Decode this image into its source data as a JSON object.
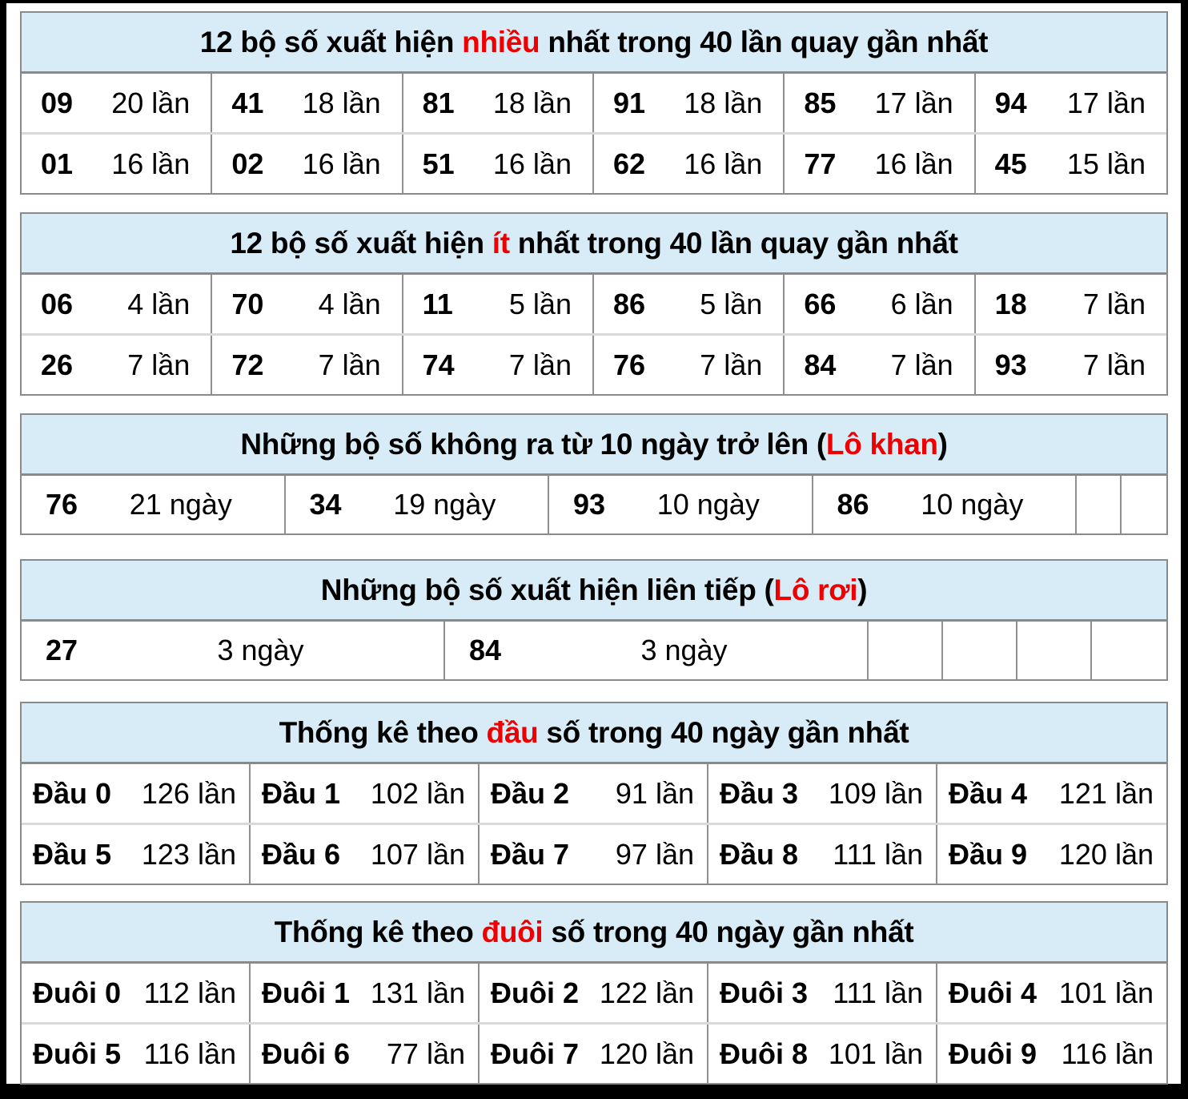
{
  "colors": {
    "frame": "#000000",
    "page_bg": "#ffffff",
    "header_bg": "#d8ecf7",
    "table_border": "#8a8a8a",
    "cell_divider": "#8f8f8f",
    "row_divider": "#d9d9d9",
    "highlight_red": "#ee0000",
    "text": "#000000"
  },
  "tables": [
    {
      "key": "most-frequent",
      "title": {
        "pre": "12 bộ số xuất hiện ",
        "hl": "nhiều",
        "post": " nhất trong 40 lần quay gần nhất"
      },
      "rows": [
        [
          {
            "n": "09",
            "v": "20 lần"
          },
          {
            "n": "41",
            "v": "18 lần"
          },
          {
            "n": "81",
            "v": "18 lần"
          },
          {
            "n": "91",
            "v": "18 lần"
          },
          {
            "n": "85",
            "v": "17 lần"
          },
          {
            "n": "94",
            "v": "17 lần"
          }
        ],
        [
          {
            "n": "01",
            "v": "16 lần"
          },
          {
            "n": "02",
            "v": "16 lần"
          },
          {
            "n": "51",
            "v": "16 lần"
          },
          {
            "n": "62",
            "v": "16 lần"
          },
          {
            "n": "77",
            "v": "16 lần"
          },
          {
            "n": "45",
            "v": "15 lần"
          }
        ]
      ]
    },
    {
      "key": "least-frequent",
      "title": {
        "pre": "12 bộ số xuất hiện ",
        "hl": "ít",
        "post": " nhất trong 40 lần quay gần nhất"
      },
      "rows": [
        [
          {
            "n": "06",
            "v": "4 lần"
          },
          {
            "n": "70",
            "v": "4 lần"
          },
          {
            "n": "11",
            "v": "5 lần"
          },
          {
            "n": "86",
            "v": "5 lần"
          },
          {
            "n": "66",
            "v": "6 lần"
          },
          {
            "n": "18",
            "v": "7 lần"
          }
        ],
        [
          {
            "n": "26",
            "v": "7 lần"
          },
          {
            "n": "72",
            "v": "7 lần"
          },
          {
            "n": "74",
            "v": "7 lần"
          },
          {
            "n": "76",
            "v": "7 lần"
          },
          {
            "n": "84",
            "v": "7 lần"
          },
          {
            "n": "93",
            "v": "7 lần"
          }
        ]
      ]
    },
    {
      "key": "lo-khan",
      "title": {
        "pre": "Những bộ số không ra từ 10 ngày trở lên (",
        "hl": "Lô khan",
        "post": ")"
      },
      "rows": [
        [
          {
            "n": "76",
            "v": "21 ngày"
          },
          {
            "n": "34",
            "v": "19 ngày"
          },
          {
            "n": "93",
            "v": "10 ngày"
          },
          {
            "n": "86",
            "v": "10 ngày"
          }
        ]
      ],
      "empty_cells": 2
    },
    {
      "key": "lo-roi",
      "title": {
        "pre": "Những bộ số xuất hiện liên tiếp (",
        "hl": "Lô rơi",
        "post": ")"
      },
      "rows": [
        [
          {
            "n": "27",
            "v": "3 ngày"
          },
          {
            "n": "84",
            "v": "3 ngày"
          }
        ]
      ],
      "empty_cells": 4
    },
    {
      "key": "dau-so",
      "title": {
        "pre": "Thống kê theo ",
        "hl": "đầu",
        "post": " số trong 40 ngày gần nhất"
      },
      "rows": [
        [
          {
            "n": "Đầu 0",
            "v": "126 lần"
          },
          {
            "n": "Đầu 1",
            "v": "102 lần"
          },
          {
            "n": "Đầu 2",
            "v": "91 lần"
          },
          {
            "n": "Đầu 3",
            "v": "109 lần"
          },
          {
            "n": "Đầu 4",
            "v": "121 lần"
          }
        ],
        [
          {
            "n": "Đầu 5",
            "v": "123 lần"
          },
          {
            "n": "Đầu 6",
            "v": "107 lần"
          },
          {
            "n": "Đầu 7",
            "v": "97 lần"
          },
          {
            "n": "Đầu 8",
            "v": "111 lần"
          },
          {
            "n": "Đầu 9",
            "v": "120 lần"
          }
        ]
      ]
    },
    {
      "key": "duoi-so",
      "title": {
        "pre": "Thống kê theo ",
        "hl": "đuôi",
        "post": " số trong 40 ngày gần nhất"
      },
      "rows": [
        [
          {
            "n": "Đuôi 0",
            "v": "112 lần"
          },
          {
            "n": "Đuôi 1",
            "v": "131 lần"
          },
          {
            "n": "Đuôi 2",
            "v": "122 lần"
          },
          {
            "n": "Đuôi 3",
            "v": "111 lần"
          },
          {
            "n": "Đuôi 4",
            "v": "101 lần"
          }
        ],
        [
          {
            "n": "Đuôi 5",
            "v": "116 lần"
          },
          {
            "n": "Đuôi 6",
            "v": "77 lần"
          },
          {
            "n": "Đuôi 7",
            "v": "120 lần"
          },
          {
            "n": "Đuôi 8",
            "v": "101 lần"
          },
          {
            "n": "Đuôi 9",
            "v": "116 lần"
          }
        ]
      ]
    }
  ]
}
